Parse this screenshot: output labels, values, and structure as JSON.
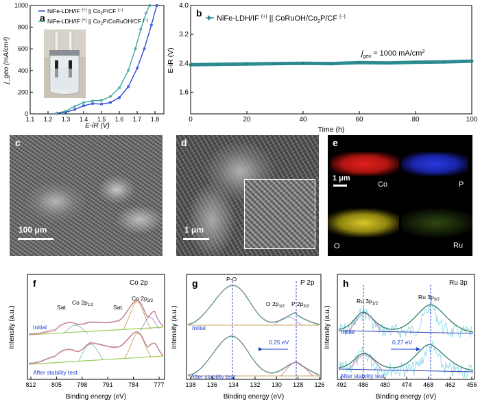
{
  "panel_labels": {
    "a": "a",
    "b": "b",
    "c": "c",
    "d": "d",
    "e": "e",
    "f": "f",
    "g": "g",
    "h": "h"
  },
  "panel_a": {
    "xlabel": "E-iR (V)",
    "ylabel": "j_geo (mA/cm²)",
    "legend_1_main": "NiFe-LDH/IF ",
    "legend_1_sup": "(+)",
    "legend_1_mid": " || Co",
    "legend_1_sub": "2",
    "legend_1_tail": "P/CF ",
    "legend_1_sup2": "(−)",
    "legend_2_main": "NiFe-LDH/IF ",
    "legend_2_sup": "(+)",
    "legend_2_mid": " || Co",
    "legend_2_sub": "2",
    "legend_2_tail": "P/CoRuOH/CF ",
    "legend_2_sup2": "(−)",
    "colors": {
      "series_1": "#2b48d9",
      "series_2": "#3ba6a0"
    }
  },
  "panel_b": {
    "xlabel": "Time (h)",
    "ylabel": "E-iR (V)",
    "legend_main": "NiFe-LDH/IF ",
    "legend_sup": "(+)",
    "legend_tail": " || CoRuOH/Co",
    "legend_sub": "2",
    "legend_tail2": "P/CF ",
    "legend_sup2": "(−)",
    "annotation_main": "j",
    "annotation_sub": "geo",
    "annotation_tail": " = 1000 mA/cm",
    "annotation_sup": "2",
    "color": "#2d8c91"
  },
  "panel_c": {
    "scale": "100 μm"
  },
  "panel_d": {
    "scale": "1 μm"
  },
  "panel_e": {
    "scale": "1 μm",
    "maps": [
      "Co",
      "P",
      "O",
      "Ru"
    ]
  },
  "panel_f": {
    "title": "Co 2p",
    "xlabel": "Binding energy (eV)",
    "ylabel": "Intensity (a.u.)",
    "label_initial": "Initial",
    "label_after": "After stability test",
    "peak_sat1": "Sat.",
    "peak_12": "Co 2p",
    "peak_12_sub": "1/2",
    "peak_sat2": "Sat.",
    "peak_32": "Co 2p",
    "peak_32_sub": "3/2"
  },
  "panel_g": {
    "title": "P 2p",
    "xlabel": "Binding energy (eV)",
    "ylabel": "Intensity (a.u.)",
    "label_initial": "Initial",
    "label_after": "After stability test",
    "peak_po": "P-O",
    "peak_o": "O 2p",
    "peak_o_sub": "1/2",
    "peak_p": "P 2p",
    "peak_p_sub": "3/2",
    "shift": "0.25 eV"
  },
  "panel_h": {
    "title": "Ru 3p",
    "xlabel": "Binding energy (eV)",
    "ylabel": "Intensity (a.u.)",
    "label_initial": "Initial",
    "label_after": "After stability test",
    "peak_12": "Ru 3p",
    "peak_12_sub": "1/2",
    "peak_32": "Ru 3p",
    "peak_32_sub": "3/2",
    "shift": "0.27 eV"
  },
  "chart_data": [
    {
      "type": "line",
      "title": "",
      "xlabel": "E-iR (V)",
      "ylabel": "j_geo (mA/cm²)",
      "xlim": [
        1.1,
        1.85
      ],
      "ylim": [
        0,
        1000
      ],
      "xticks": [
        "1.1",
        "1.2",
        "1.3",
        "1.4",
        "1.5",
        "1.6",
        "1.7",
        "1.8"
      ],
      "yticks": [
        "0",
        "200",
        "400",
        "600",
        "800",
        "1000"
      ],
      "series": [
        {
          "name": "NiFe-LDH/IF (+) || Co2P/CF (−)",
          "x": [
            1.25,
            1.3,
            1.35,
            1.4,
            1.45,
            1.5,
            1.55,
            1.6,
            1.65,
            1.7,
            1.74,
            1.78,
            1.81
          ],
          "y": [
            5,
            15,
            40,
            75,
            95,
            90,
            105,
            150,
            250,
            420,
            600,
            820,
            1000
          ]
        },
        {
          "name": "NiFe-LDH/IF (+) || Co2P/CoRuOH/CF (−)",
          "x": [
            1.25,
            1.3,
            1.35,
            1.4,
            1.45,
            1.5,
            1.55,
            1.6,
            1.65,
            1.69,
            1.72,
            1.75,
            1.77
          ],
          "y": [
            8,
            25,
            70,
            105,
            120,
            125,
            160,
            240,
            400,
            600,
            780,
            930,
            1000
          ]
        }
      ]
    },
    {
      "type": "line",
      "title": "",
      "xlabel": "Time (h)",
      "ylabel": "E-iR (V)",
      "xlim": [
        0,
        100
      ],
      "ylim": [
        1.0,
        4.0
      ],
      "xticks": [
        "0",
        "20",
        "40",
        "60",
        "80",
        "100"
      ],
      "yticks": [
        "1.6",
        "2.4",
        "3.2",
        "4.0"
      ],
      "series": [
        {
          "name": "NiFe-LDH/IF (+) || CoRuOH/Co2P/CF (−)",
          "x": [
            0,
            10,
            20,
            30,
            40,
            50,
            60,
            70,
            80,
            90,
            100
          ],
          "y": [
            2.36,
            2.37,
            2.38,
            2.39,
            2.4,
            2.39,
            2.42,
            2.41,
            2.43,
            2.44,
            2.46
          ]
        }
      ]
    },
    {
      "type": "line",
      "title": "Co 2p",
      "xlabel": "Binding energy (eV)",
      "ylabel": "Intensity (a.u.)",
      "xlim": [
        812,
        775
      ],
      "xticks": [
        "812",
        "805",
        "798",
        "791",
        "784",
        "777"
      ]
    },
    {
      "type": "line",
      "title": "P 2p",
      "xlabel": "Binding energy (eV)",
      "ylabel": "Intensity (a.u.)",
      "xlim": [
        139,
        126
      ],
      "xticks": [
        "138",
        "136",
        "134",
        "132",
        "130",
        "128",
        "126"
      ]
    },
    {
      "type": "line",
      "title": "Ru 3p",
      "xlabel": "Binding energy (eV)",
      "ylabel": "Intensity (a.u.)",
      "xlim": [
        494,
        452
      ],
      "xticks": [
        "492",
        "486",
        "480",
        "474",
        "468",
        "462",
        "456"
      ]
    }
  ]
}
